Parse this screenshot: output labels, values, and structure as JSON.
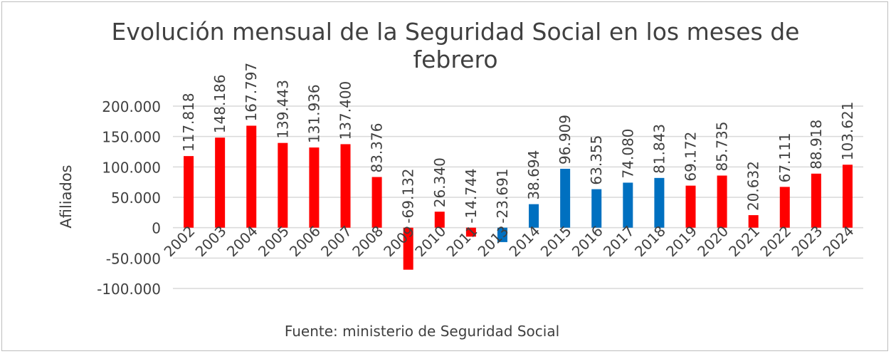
{
  "chart_data": {
    "type": "bar",
    "title_line1": "Evolución mensual de la Seguridad Social en los meses de",
    "title_line2": "febrero",
    "ylabel": "Afiliados",
    "source": "Fuente: ministerio de Seguridad Social",
    "ylim": [
      -100000,
      200000
    ],
    "yticks": [
      200000,
      150000,
      100000,
      50000,
      0,
      -50000,
      -100000
    ],
    "ytick_labels": [
      "200.000",
      "150.000",
      "100.000",
      "50.000",
      "0",
      "-50.000",
      "-100.000"
    ],
    "grid": true,
    "categories": [
      "2002",
      "2003",
      "2004",
      "2005",
      "2006",
      "2007",
      "2008",
      "2009",
      "2010",
      "2011",
      "2013",
      "2014",
      "2015",
      "2016",
      "2017",
      "2018",
      "2019",
      "2020",
      "2021",
      "2022",
      "2023",
      "2024"
    ],
    "values": [
      117818,
      148186,
      167797,
      139443,
      131936,
      137400,
      83376,
      -69132,
      26340,
      -14744,
      -23691,
      38694,
      96909,
      63355,
      74080,
      81843,
      69172,
      85735,
      20632,
      67111,
      88918,
      103621
    ],
    "value_labels": [
      "117.818",
      "148.186",
      "167.797",
      "139.443",
      "131.936",
      "137.400",
      "83.376",
      "-69.132",
      "26.340",
      "-14.744",
      "-23.691",
      "38.694",
      "96.909",
      "63.355",
      "74.080",
      "81.843",
      "69.172",
      "85.735",
      "20.632",
      "67.111",
      "88.918",
      "103.621"
    ],
    "bar_colors": [
      "#ff0000",
      "#ff0000",
      "#ff0000",
      "#ff0000",
      "#ff0000",
      "#ff0000",
      "#ff0000",
      "#ff0000",
      "#ff0000",
      "#ff0000",
      "#0070c0",
      "#0070c0",
      "#0070c0",
      "#0070c0",
      "#0070c0",
      "#0070c0",
      "#ff0000",
      "#ff0000",
      "#ff0000",
      "#ff0000",
      "#ff0000",
      "#ff0000"
    ]
  }
}
